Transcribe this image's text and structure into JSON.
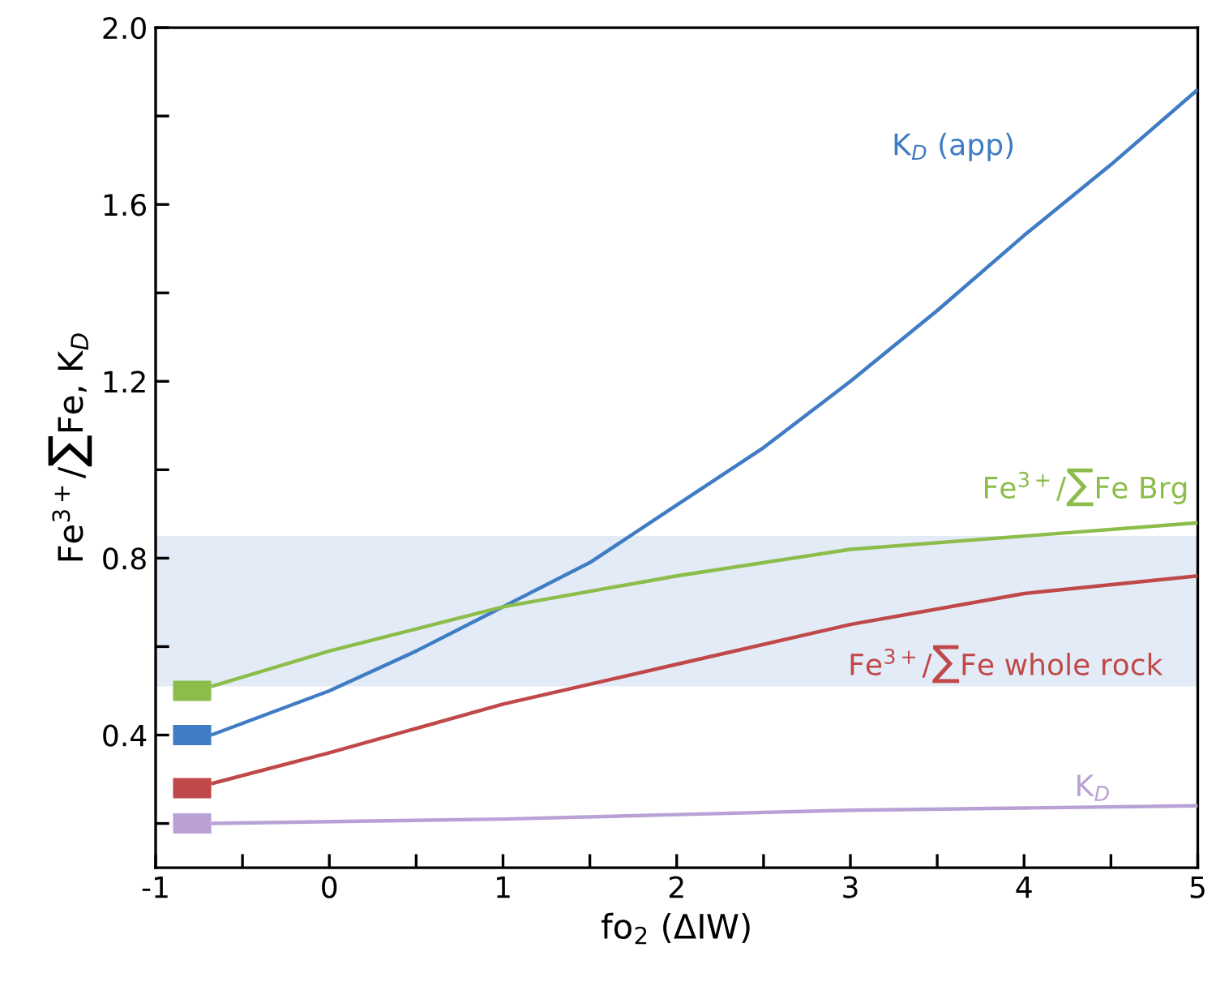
{
  "chart_data": {
    "type": "line",
    "xlabel": "fo$_{2}$ (ΔIW)",
    "ylabel": "Fe$^{3+}$/∑Fe, K$_{D}$",
    "xlim": [
      -1,
      5
    ],
    "ylim": [
      0.1,
      2.0
    ],
    "xticks": [
      -1,
      {
        "value": -0.5,
        "label": null
      },
      0,
      {
        "value": 0.5,
        "label": null
      },
      1,
      {
        "value": 1.5,
        "label": null
      },
      2,
      {
        "value": 2.5,
        "label": null
      },
      3,
      {
        "value": 3.5,
        "label": null
      },
      4,
      {
        "value": 4.5,
        "label": null
      },
      5
    ],
    "yticks": [
      {
        "value": 0.2,
        "label": null
      },
      0.4,
      {
        "value": 0.6,
        "label": null
      },
      0.8,
      {
        "value": 1.0,
        "label": null
      },
      1.2,
      {
        "value": 1.4,
        "label": null
      },
      1.6,
      {
        "value": 1.8,
        "label": null
      },
      {
        "value": 2.0,
        "label": "2.0"
      }
    ],
    "grid": false,
    "legend": false,
    "bands": [
      {
        "axis": "y",
        "from": 0.51,
        "to": 0.85,
        "color": "#e3ebf7"
      }
    ],
    "series": [
      {
        "name": "K$_{D}$ (app)",
        "color": "#3f7cc4",
        "x": [
          -0.68,
          0,
          0.5,
          1,
          1.5,
          2,
          2.5,
          3,
          3.5,
          4,
          4.5,
          5
        ],
        "values": [
          0.4,
          0.5,
          0.59,
          0.69,
          0.79,
          0.92,
          1.05,
          1.2,
          1.36,
          1.53,
          1.69,
          1.86
        ]
      },
      {
        "name": "Fe$^{3+}$/∑Fe Brg",
        "color": "#8cbd4a",
        "x": [
          -0.68,
          0,
          1,
          2,
          3,
          4,
          5
        ],
        "values": [
          0.51,
          0.59,
          0.69,
          0.76,
          0.82,
          0.85,
          0.88
        ]
      },
      {
        "name": "Fe$^{3+}$/∑Fe whole rock",
        "color": "#c04848",
        "x": [
          -0.68,
          0,
          1,
          2,
          3,
          4,
          5
        ],
        "values": [
          0.29,
          0.36,
          0.47,
          0.56,
          0.65,
          0.72,
          0.76
        ]
      },
      {
        "name": "K$_{D}$",
        "color": "#b9a1d6",
        "x": [
          -0.68,
          1,
          2,
          3,
          4,
          5
        ],
        "values": [
          0.2,
          0.21,
          0.22,
          0.23,
          0.235,
          0.24
        ]
      },
      {
        "color": "#8cbd4a",
        "x": [
          -0.9,
          -0.68
        ],
        "values": [
          0.5,
          0.5
        ]
      },
      {
        "color": "#3f7cc4",
        "x": [
          -0.9,
          -0.68
        ],
        "values": [
          0.4,
          0.4
        ]
      },
      {
        "color": "#c04848",
        "x": [
          -0.9,
          -0.68
        ],
        "values": [
          0.28,
          0.28
        ]
      },
      {
        "color": "#b9a1d6",
        "x": [
          -0.9,
          -0.68
        ],
        "values": [
          0.2,
          0.2
        ]
      }
    ]
  }
}
